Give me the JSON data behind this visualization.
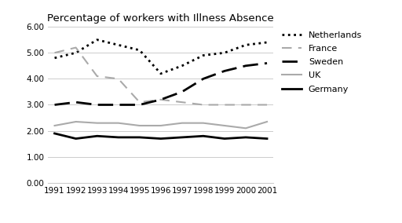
{
  "title": "Percentage of workers with Illness Absence",
  "years": [
    1991,
    1992,
    1993,
    1994,
    1995,
    1996,
    1997,
    1998,
    1999,
    2000,
    2001
  ],
  "series": {
    "Netherlands": {
      "values": [
        4.8,
        5.0,
        5.5,
        5.3,
        5.1,
        4.2,
        4.5,
        4.9,
        5.0,
        5.3,
        5.4
      ],
      "color": "#000000",
      "linestyle": "dotted",
      "linewidth": 2.0
    },
    "France": {
      "values": [
        5.0,
        5.2,
        4.1,
        4.0,
        3.1,
        3.2,
        3.1,
        3.0,
        3.0,
        3.0,
        3.0
      ],
      "color": "#aaaaaa",
      "linestyle": [
        0,
        [
          6,
          4
        ]
      ],
      "linewidth": 1.5
    },
    "Sweden": {
      "values": [
        3.0,
        3.1,
        3.0,
        3.0,
        3.0,
        3.2,
        3.5,
        4.0,
        4.3,
        4.5,
        4.6
      ],
      "color": "#000000",
      "linestyle": [
        0,
        [
          7,
          3
        ]
      ],
      "linewidth": 2.0
    },
    "UK": {
      "values": [
        2.2,
        2.35,
        2.3,
        2.3,
        2.2,
        2.2,
        2.3,
        2.3,
        2.2,
        2.1,
        2.35
      ],
      "color": "#aaaaaa",
      "linestyle": "solid",
      "linewidth": 1.5
    },
    "Germany": {
      "values": [
        1.9,
        1.7,
        1.8,
        1.75,
        1.75,
        1.7,
        1.75,
        1.8,
        1.7,
        1.75,
        1.7
      ],
      "color": "#000000",
      "linestyle": "solid",
      "linewidth": 2.0
    }
  },
  "ylim": [
    0.0,
    6.0
  ],
  "yticks": [
    0.0,
    1.0,
    2.0,
    3.0,
    4.0,
    5.0,
    6.0
  ],
  "ytick_labels": [
    "0.00",
    "1.00",
    "2.00",
    "3.00",
    "4.00",
    "5.00",
    "6.00"
  ],
  "grid_color": "#cccccc",
  "background_color": "#ffffff",
  "legend_order": [
    "Netherlands",
    "France",
    "Sweden",
    "UK",
    "Germany"
  ]
}
